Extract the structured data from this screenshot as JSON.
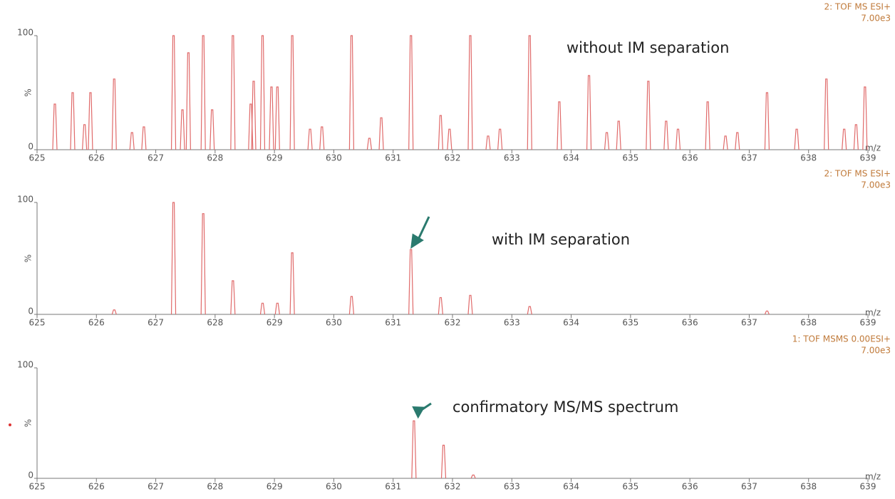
{
  "chart_data": [
    {
      "type": "spectrum",
      "title": "2: TOF MS ESI+",
      "subtitle": "7.00e3",
      "annotation": "without IM separation",
      "y_label": "%",
      "x_label": "m/z",
      "color": "#e06a6a",
      "xlim": [
        625,
        639
      ],
      "xticks": [
        625,
        626,
        627,
        628,
        629,
        630,
        631,
        632,
        633,
        634,
        635,
        636,
        637,
        638,
        639
      ],
      "ylim": [
        0,
        100
      ],
      "yticks": [
        0,
        100
      ],
      "x": [
        625.3,
        625.6,
        625.8,
        625.9,
        626.3,
        626.6,
        626.8,
        627.3,
        627.45,
        627.55,
        627.8,
        627.95,
        628.3,
        628.6,
        628.65,
        628.8,
        628.95,
        629.05,
        629.3,
        629.6,
        629.8,
        630.3,
        630.6,
        630.8,
        631.3,
        631.8,
        631.95,
        632.3,
        632.6,
        632.8,
        633.3,
        633.8,
        634.3,
        634.6,
        634.8,
        635.3,
        635.6,
        635.8,
        636.3,
        636.6,
        636.8,
        637.3,
        637.8,
        638.3,
        638.6,
        638.8,
        638.95
      ],
      "values": [
        40,
        50,
        22,
        50,
        62,
        15,
        20,
        100,
        35,
        85,
        100,
        35,
        100,
        40,
        60,
        100,
        55,
        55,
        100,
        18,
        20,
        100,
        10,
        28,
        100,
        30,
        18,
        100,
        12,
        18,
        100,
        42,
        65,
        15,
        25,
        60,
        25,
        18,
        42,
        12,
        15,
        50,
        18,
        62,
        18,
        22,
        55
      ]
    },
    {
      "type": "spectrum",
      "title": "2: TOF MS ESI+",
      "subtitle": "7.00e3",
      "annotation": "with IM separation",
      "y_label": "%",
      "x_label": "m/z",
      "color": "#e06a6a",
      "xlim": [
        625,
        639
      ],
      "xticks": [
        625,
        626,
        627,
        628,
        629,
        630,
        631,
        632,
        633,
        634,
        635,
        636,
        637,
        638,
        639
      ],
      "ylim": [
        0,
        100
      ],
      "yticks": [
        0,
        100
      ],
      "x": [
        626.3,
        627.3,
        627.8,
        628.3,
        628.8,
        629.05,
        629.3,
        630.3,
        631.3,
        631.8,
        632.3,
        633.3,
        637.3
      ],
      "values": [
        4,
        100,
        90,
        30,
        10,
        10,
        55,
        16,
        58,
        15,
        17,
        7,
        3
      ]
    },
    {
      "type": "spectrum",
      "title": "1: TOF MSMS 0.00ESI+",
      "subtitle": "7.00e3",
      "annotation": "confirmatory MS/MS spectrum",
      "y_label": "%",
      "x_label": "m/z",
      "color": "#e06a6a",
      "xlim": [
        625,
        639
      ],
      "xticks": [
        625,
        626,
        627,
        628,
        629,
        630,
        631,
        632,
        633,
        634,
        635,
        636,
        637,
        638,
        639
      ],
      "ylim": [
        0,
        100
      ],
      "yticks": [
        0,
        100
      ],
      "x": [
        631.35,
        631.85,
        632.35
      ],
      "values": [
        52,
        30,
        3
      ]
    }
  ]
}
